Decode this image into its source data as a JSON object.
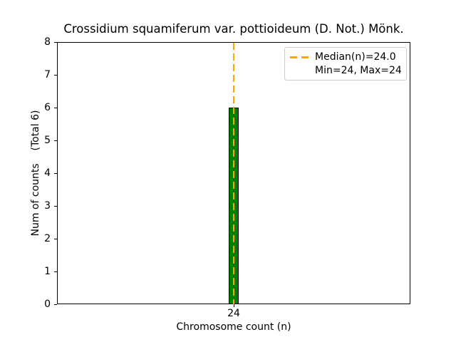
{
  "chart_data": {
    "type": "bar",
    "title": "Crossidium squamiferum var. pottioideum (D. Not.) Mönk.",
    "xlabel": "Chromosome count (n)",
    "ylabel": "Num of counts    (Total 6)",
    "total_counts": 6,
    "categories": [
      "24"
    ],
    "values": [
      6
    ],
    "ylim": [
      0,
      8
    ],
    "yticks": [
      0,
      1,
      2,
      3,
      4,
      5,
      6,
      7,
      8
    ],
    "grid": false,
    "colors": {
      "bar_fill": "#008000",
      "bar_edge": "#000000",
      "median_line": "#FFA500",
      "legend_border": "#CCCCCC",
      "text": "#000000"
    },
    "median_line": {
      "x": 24.0,
      "style": "dashed"
    },
    "legend": {
      "position": "upper-right",
      "entries": [
        {
          "label": "Median(n)=24.0",
          "symbol": "orange-dashed-line"
        },
        {
          "label": "Min=24, Max=24",
          "symbol": "none"
        }
      ]
    }
  }
}
